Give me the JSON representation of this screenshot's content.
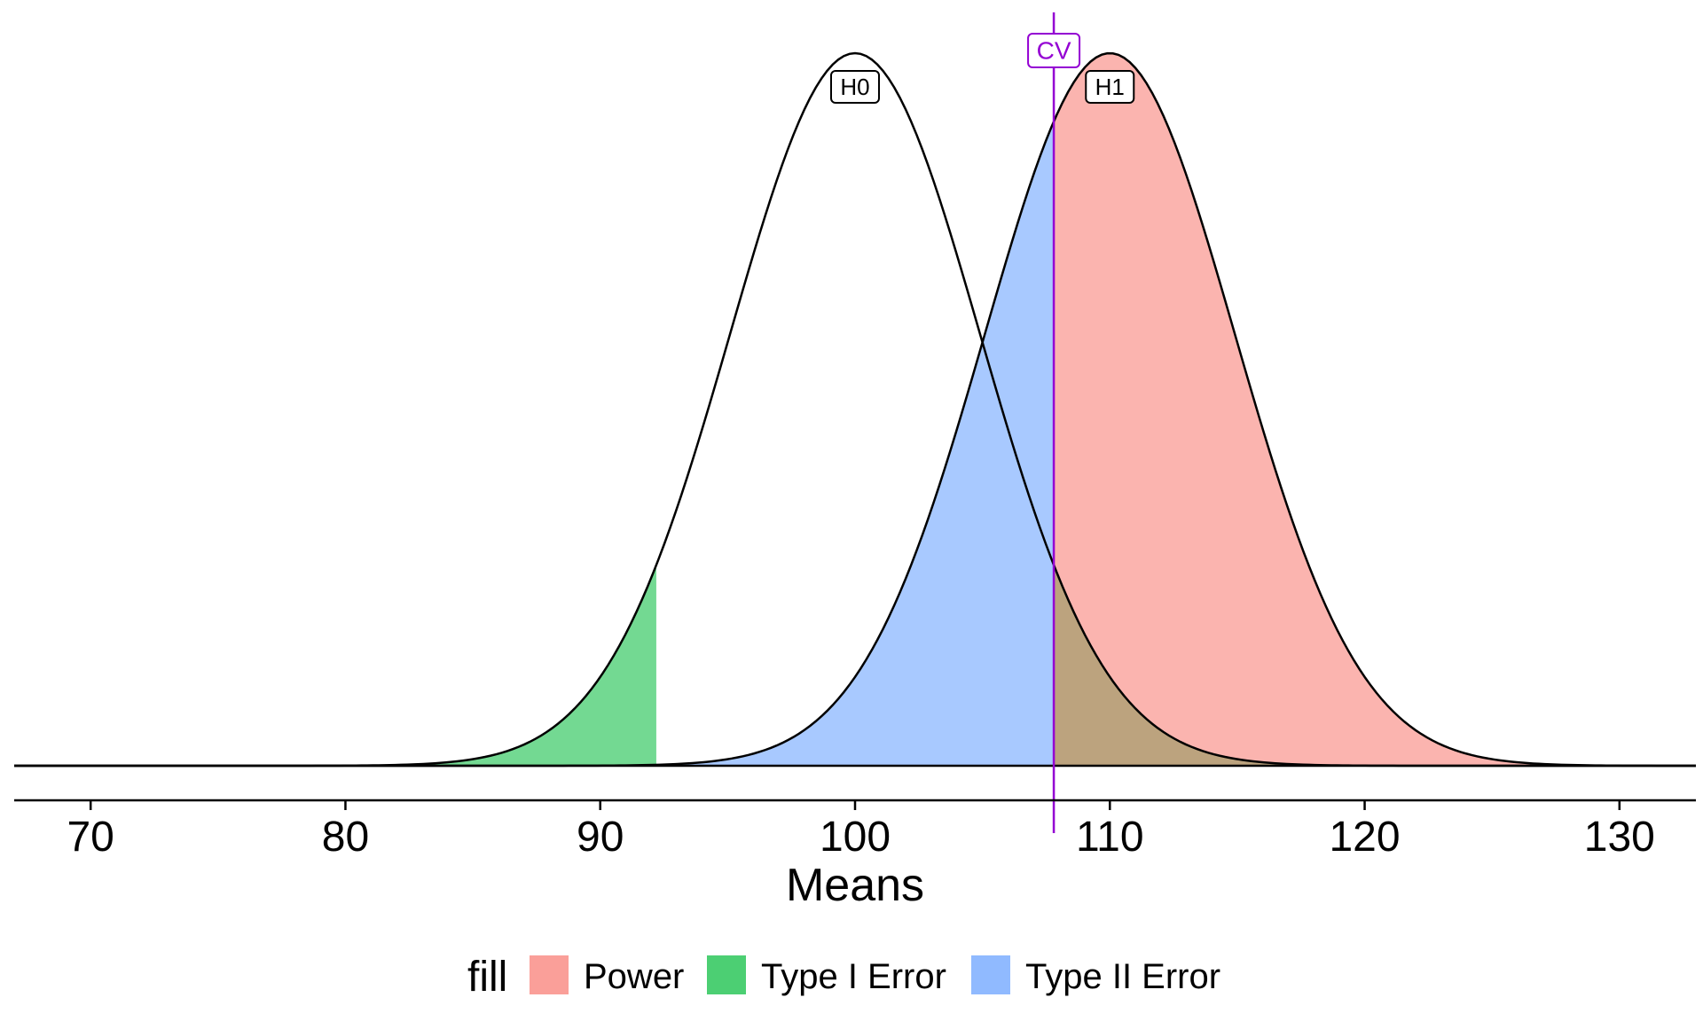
{
  "chart_data": {
    "type": "area",
    "title": "",
    "xlabel": "Means",
    "ylabel": "",
    "xlim": [
      67,
      133
    ],
    "x_ticks": [
      70,
      80,
      90,
      100,
      110,
      120,
      130
    ],
    "grid": false,
    "legend_position": "bottom",
    "distributions": [
      {
        "label": "H0",
        "mean": 100,
        "sd": 4.9
      },
      {
        "label": "H1",
        "mean": 110,
        "sd": 4.9
      }
    ],
    "critical_value": {
      "label": "CV",
      "x": 107.8,
      "color": "#9400D3"
    },
    "lower_tail_cutoff": 92.2,
    "fill_regions": [
      {
        "name": "Type I Error",
        "curve": "H0",
        "from": 67,
        "to": 92.2
      },
      {
        "name": "Type I Error",
        "curve": "H0",
        "from": 107.8,
        "to": 133
      },
      {
        "name": "Type II Error",
        "curve": "H1",
        "from": 67,
        "to": 107.8
      },
      {
        "name": "Power",
        "curve": "H1",
        "from": 107.8,
        "to": 133
      }
    ],
    "legend": {
      "title": "fill",
      "items": [
        {
          "name": "Power",
          "color": "#F8766D"
        },
        {
          "name": "Type I Error",
          "color": "#00BA38"
        },
        {
          "name": "Type II Error",
          "color": "#619CFF"
        }
      ]
    }
  }
}
